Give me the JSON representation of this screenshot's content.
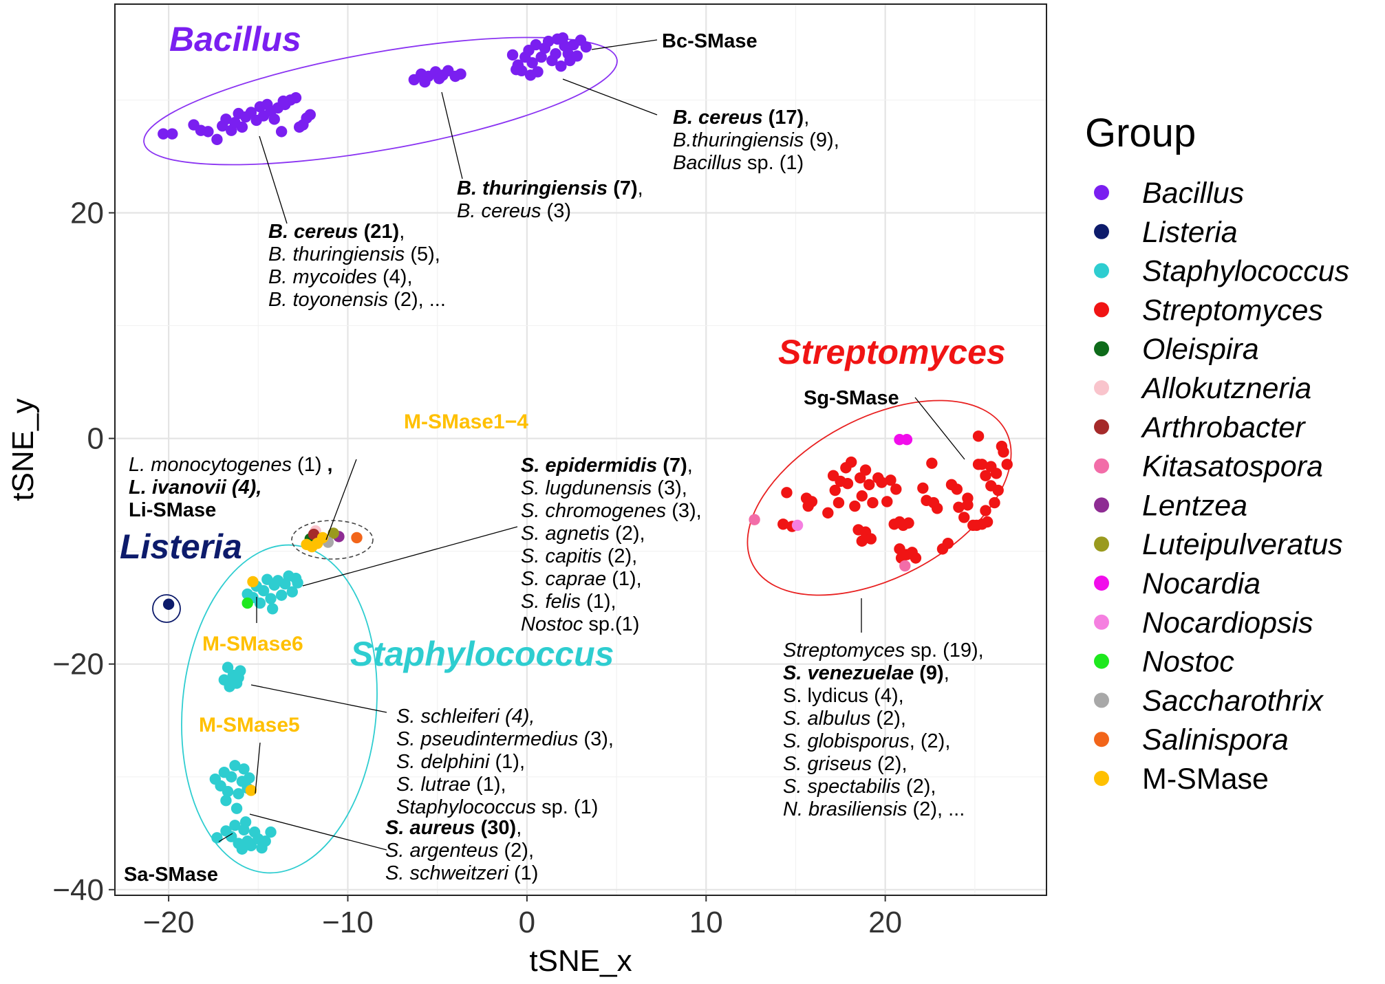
{
  "chart_data": {
    "type": "scatter",
    "xlabel": "tSNE_x",
    "ylabel": "tSNE_y",
    "xlim": [
      -23,
      29
    ],
    "ylim": [
      -40.5,
      38.5
    ],
    "xticks": [
      -20,
      -10,
      0,
      10,
      20
    ],
    "yticks": [
      -40,
      -20,
      0,
      20
    ],
    "xtick_labels": [
      "−20",
      "−10",
      "0",
      "10",
      "20"
    ],
    "ytick_labels": [
      "−40",
      "−20",
      "0",
      "20"
    ],
    "grid": true,
    "legend_title": "Group",
    "legend_position": "right",
    "groups": [
      {
        "name": "Bacillus",
        "color": "#7A1FF0",
        "italic": true
      },
      {
        "name": "Listeria",
        "color": "#0D1B6B",
        "italic": true
      },
      {
        "name": "Staphylococcus",
        "color": "#2ECDD0",
        "italic": true
      },
      {
        "name": "Streptomyces",
        "color": "#F01414",
        "italic": true
      },
      {
        "name": "Oleispira",
        "color": "#0E6B1A",
        "italic": true
      },
      {
        "name": "Allokutzneria",
        "color": "#F9C4CC",
        "italic": true
      },
      {
        "name": "Arthrobacter",
        "color": "#A52A2A",
        "italic": true
      },
      {
        "name": "Kitasatospora",
        "color": "#F26DA8",
        "italic": true
      },
      {
        "name": "Lentzea",
        "color": "#8E2C93",
        "italic": true
      },
      {
        "name": "Luteipulveratus",
        "color": "#9A9A1E",
        "italic": true
      },
      {
        "name": "Nocardia",
        "color": "#F10DEB",
        "italic": true
      },
      {
        "name": "Nocardiopsis",
        "color": "#F57FE0",
        "italic": true
      },
      {
        "name": "Nostoc",
        "color": "#1EE81E",
        "italic": true
      },
      {
        "name": "Saccharothrix",
        "color": "#A8A8A8",
        "italic": true
      },
      {
        "name": "Salinispora",
        "color": "#F2651A",
        "italic": true
      },
      {
        "name": "M-SMase",
        "color": "#FFC000",
        "italic": false
      }
    ],
    "series": [
      {
        "group": "Bacillus",
        "points": [
          [
            -20.3,
            27
          ],
          [
            -19.8,
            27
          ],
          [
            -18.6,
            27.8
          ],
          [
            -18.2,
            27.3
          ],
          [
            -17.8,
            27.2
          ],
          [
            -17.3,
            26.5
          ],
          [
            -17,
            27.7
          ],
          [
            -16.8,
            28.3
          ],
          [
            -16.5,
            27.3
          ],
          [
            -16.3,
            28
          ],
          [
            -16.1,
            28.8
          ],
          [
            -15.9,
            27.6
          ],
          [
            -15.7,
            28.5
          ],
          [
            -15.4,
            28.9
          ],
          [
            -15.1,
            28.2
          ],
          [
            -14.9,
            29.4
          ],
          [
            -14.7,
            28.6
          ],
          [
            -14.5,
            29.6
          ],
          [
            -14.3,
            29
          ],
          [
            -14.1,
            28.3
          ],
          [
            -13.9,
            29.3
          ],
          [
            -13.7,
            27.2
          ],
          [
            -13.5,
            29.6
          ],
          [
            -13.2,
            30
          ],
          [
            -12.9,
            30.2
          ],
          [
            -13.6,
            29.9
          ],
          [
            -12.7,
            27.6
          ],
          [
            -12.5,
            27.8
          ],
          [
            -12.3,
            28.4
          ],
          [
            -12.1,
            28.7
          ],
          [
            -6.3,
            31.8
          ],
          [
            -5.9,
            32.3
          ],
          [
            -5.5,
            32.1
          ],
          [
            -5.1,
            32.5
          ],
          [
            -4.7,
            32.2
          ],
          [
            -4.4,
            32.6
          ],
          [
            -4,
            32.1
          ],
          [
            -3.7,
            32.3
          ],
          [
            -5.7,
            31.6
          ],
          [
            -4.9,
            31.9
          ],
          [
            -0.8,
            34
          ],
          [
            -0.5,
            33.1
          ],
          [
            -0.3,
            32.6
          ],
          [
            -0.1,
            33.8
          ],
          [
            0.1,
            34.4
          ],
          [
            0.3,
            33.3
          ],
          [
            0.5,
            34.9
          ],
          [
            0.6,
            32.5
          ],
          [
            0.8,
            33.8
          ],
          [
            1,
            34.6
          ],
          [
            1.2,
            35.2
          ],
          [
            1.4,
            33.5
          ],
          [
            1.6,
            34.1
          ],
          [
            1.7,
            35.4
          ],
          [
            1.9,
            33
          ],
          [
            2.1,
            34.8
          ],
          [
            2.3,
            34.1
          ],
          [
            2.4,
            33.5
          ],
          [
            2.6,
            34.9
          ],
          [
            2.8,
            33.9
          ],
          [
            3,
            35.3
          ],
          [
            3.3,
            34.7
          ],
          [
            -0.6,
            32.7
          ],
          [
            0.2,
            32.2
          ],
          [
            2,
            35.5
          ]
        ]
      },
      {
        "group": "Listeria",
        "points": [
          [
            -20,
            -14.7
          ]
        ]
      },
      {
        "group": "Staphylococcus",
        "points": [
          [
            -15.6,
            -13.8
          ],
          [
            -15.3,
            -14.1
          ],
          [
            -15.1,
            -13.1
          ],
          [
            -14.9,
            -14.6
          ],
          [
            -14.7,
            -13.5
          ],
          [
            -14.5,
            -12.5
          ],
          [
            -14.3,
            -14.2
          ],
          [
            -14.1,
            -13
          ],
          [
            -13.9,
            -12.6
          ],
          [
            -13.7,
            -13.9
          ],
          [
            -13.5,
            -12.9
          ],
          [
            -13.3,
            -12.2
          ],
          [
            -13.1,
            -13.6
          ],
          [
            -12.9,
            -12.4
          ],
          [
            -12.8,
            -12.8
          ],
          [
            -14.2,
            -15.1
          ],
          [
            -16.9,
            -21.4
          ],
          [
            -16.7,
            -20.3
          ],
          [
            -16.6,
            -22
          ],
          [
            -16.4,
            -21
          ],
          [
            -16.2,
            -21.7
          ],
          [
            -16.1,
            -21.2
          ],
          [
            -16,
            -20.6
          ],
          [
            -16.5,
            -21.8
          ],
          [
            -17.4,
            -30.2
          ],
          [
            -17.1,
            -30.8
          ],
          [
            -16.9,
            -29.6
          ],
          [
            -16.7,
            -31.3
          ],
          [
            -16.5,
            -30
          ],
          [
            -16.3,
            -29
          ],
          [
            -16.1,
            -31.5
          ],
          [
            -15.9,
            -30.4
          ],
          [
            -15.8,
            -29.3
          ],
          [
            -15.6,
            -31
          ],
          [
            -15.5,
            -30.1
          ],
          [
            -16.8,
            -32.1
          ],
          [
            -16.2,
            -32.8
          ],
          [
            -16.8,
            -34.8
          ],
          [
            -16.5,
            -35.3
          ],
          [
            -16.3,
            -34.3
          ],
          [
            -16.1,
            -35.9
          ],
          [
            -15.9,
            -36.4
          ],
          [
            -15.8,
            -34.7
          ],
          [
            -15.6,
            -35.7
          ],
          [
            -15.4,
            -36.1
          ],
          [
            -15.2,
            -34.9
          ],
          [
            -15,
            -35.5
          ],
          [
            -14.8,
            -36.3
          ],
          [
            -14.6,
            -35.7
          ],
          [
            -14.3,
            -34.9
          ],
          [
            -15.7,
            -34
          ],
          [
            -17.3,
            -35.4
          ]
        ]
      },
      {
        "group": "Streptomyces",
        "points": [
          [
            14.5,
            -4.8
          ],
          [
            14.8,
            -7.8
          ],
          [
            14.3,
            -7.6
          ],
          [
            15.6,
            -5.3
          ],
          [
            15.9,
            -5.6
          ],
          [
            15.7,
            -6
          ],
          [
            16.8,
            -6.6
          ],
          [
            17.2,
            -4.6
          ],
          [
            17.1,
            -3.3
          ],
          [
            17.5,
            -3.8
          ],
          [
            17.4,
            -5.7
          ],
          [
            17.8,
            -2.6
          ],
          [
            17.9,
            -4
          ],
          [
            18.3,
            -6
          ],
          [
            18.1,
            -2.1
          ],
          [
            18.6,
            -3.5
          ],
          [
            18.9,
            -2.8
          ],
          [
            19.1,
            -4.1
          ],
          [
            19.3,
            -5.7
          ],
          [
            18.7,
            -5.1
          ],
          [
            18.5,
            -8.1
          ],
          [
            18.9,
            -8.3
          ],
          [
            19.2,
            -8.9
          ],
          [
            18.7,
            -9.1
          ],
          [
            19.6,
            -3.5
          ],
          [
            19.8,
            -3.9
          ],
          [
            20.1,
            -5.6
          ],
          [
            20.3,
            -3.7
          ],
          [
            20.6,
            -4.5
          ],
          [
            20.8,
            -7.4
          ],
          [
            21,
            -7.7
          ],
          [
            21.3,
            -7.5
          ],
          [
            20.5,
            -7.6
          ],
          [
            20.8,
            -9.8
          ],
          [
            21.2,
            -10.3
          ],
          [
            21.5,
            -10.1
          ],
          [
            21.7,
            -10.6
          ],
          [
            20.9,
            -10.6
          ],
          [
            22.1,
            -4.4
          ],
          [
            22.3,
            -5.5
          ],
          [
            22.6,
            -2.2
          ],
          [
            22.9,
            -6.2
          ],
          [
            23.2,
            -9.8
          ],
          [
            23.5,
            -9.3
          ],
          [
            23.7,
            -4.1
          ],
          [
            24,
            -4.5
          ],
          [
            24.1,
            -6.1
          ],
          [
            24.4,
            -7
          ],
          [
            24.6,
            -5.3
          ],
          [
            24.9,
            -7.7
          ],
          [
            25.2,
            0.2
          ],
          [
            25.4,
            -2.3
          ],
          [
            25.6,
            -3.3
          ],
          [
            25.9,
            -2.5
          ],
          [
            26.1,
            -5.7
          ],
          [
            26.3,
            -4.6
          ],
          [
            26.6,
            -1.2
          ],
          [
            26.8,
            -2.3
          ],
          [
            26.5,
            -0.7
          ],
          [
            25.7,
            -7.4
          ],
          [
            25.4,
            -7.6
          ],
          [
            25.1,
            -7.7
          ],
          [
            24.6,
            -5.9
          ],
          [
            25.9,
            -4.2
          ],
          [
            26.2,
            -3.1
          ],
          [
            25.6,
            -6.4
          ],
          [
            25.2,
            -2.3
          ],
          [
            22.7,
            -5.7
          ]
        ]
      },
      {
        "group": "Oleispira",
        "points": [
          [
            -12.1,
            -8.9
          ]
        ]
      },
      {
        "group": "Allokutzneria",
        "points": [
          [
            -11.8,
            -8.2
          ]
        ]
      },
      {
        "group": "Arthrobacter",
        "points": [
          [
            -11.9,
            -8.5
          ]
        ]
      },
      {
        "group": "Kitasatospora",
        "points": [
          [
            12.7,
            -7.2
          ],
          [
            21.1,
            -11.3
          ]
        ]
      },
      {
        "group": "Lentzea",
        "points": [
          [
            -10.5,
            -8.7
          ]
        ]
      },
      {
        "group": "Luteipulveratus",
        "points": [
          [
            -10.8,
            -8.4
          ]
        ]
      },
      {
        "group": "Nocardia",
        "points": [
          [
            20.8,
            -0.1
          ],
          [
            21.2,
            -0.1
          ]
        ]
      },
      {
        "group": "Nocardiopsis",
        "points": [
          [
            15.1,
            -7.7
          ]
        ]
      },
      {
        "group": "Nostoc",
        "points": [
          [
            -15.6,
            -14.6
          ]
        ]
      },
      {
        "group": "Saccharothrix",
        "points": [
          [
            -11.1,
            -9.2
          ]
        ]
      },
      {
        "group": "Salinispora",
        "points": [
          [
            -9.5,
            -8.8
          ]
        ]
      },
      {
        "group": "M-SMase",
        "points": [
          [
            -12.3,
            -9.4
          ],
          [
            -12,
            -9.6
          ],
          [
            -11.7,
            -9.3
          ],
          [
            -11.4,
            -8.8
          ],
          [
            -15.3,
            -12.7
          ],
          [
            -15.4,
            -31.2
          ]
        ]
      }
    ],
    "annotations": {
      "cluster_titles": [
        "Bacillus",
        "Listeria",
        "Staphylococcus",
        "Streptomyces"
      ],
      "enzymes": [
        "Bc-SMase",
        "Li-SMase",
        "Sg-SMase",
        "Sa-SMase",
        "M-SMase1−4",
        "M-SMase6",
        "M-SMase5"
      ],
      "bc_group3": {
        "a": "B. cereus",
        "a_count": "(17)",
        "a_sep": ",",
        "b": "B.thuringiensis",
        "b_count": " (9),",
        "c": "Bacillus",
        "c_rest": " sp. (1)"
      },
      "bc_group2": {
        "a": "B. thuringiensis",
        "a_count": " (7)",
        "a_sep": ",",
        "b": "B. cereus",
        "b_count": " (3)"
      },
      "bc_group1": {
        "a": "B. cereus",
        "a_count": " (21)",
        "a_sep": ",",
        "b": "B. thuringiensis",
        "b_count": " (5),",
        "c": "B. mycoides",
        "c_count": " (4),",
        "d": "B. toyonensis",
        "d_count": " (2), ..."
      },
      "listeria": {
        "a": "L. monocytogenes",
        "a_count": " (1) ",
        "a_sep": ",",
        "b": "L. ivanovii (4),"
      },
      "staph_top": {
        "a": "S. epidermidis",
        "a_count": " (7)",
        "a_sep": ",",
        "l2": "S. lugdunensis",
        "l2c": " (3),",
        "l3": "S. chromogenes",
        "l3c": " (3),",
        "l4": "S. agnetis",
        "l4c": " (2),",
        "l5": "S. capitis",
        "l5c": " (2),",
        "l6": "S. caprae",
        "l6c": " (1),",
        "l7": "S. felis",
        "l7c": " (1),",
        "l8": "Nostoc",
        "l8c": " sp.(1)"
      },
      "staph_mid": {
        "l1": "S. schleiferi (4),",
        "l2": "S. pseudintermedius",
        "l2c": " (3),",
        "l3": "S. delphini",
        "l3c": " (1),",
        "l4": "S. lutrae",
        "l4c": " (1),",
        "l5": "Staphylococcus",
        "l5c": " sp. (1)"
      },
      "staph_bot": {
        "a": "S. aureus",
        "a_count": " (30)",
        "a_sep": ",",
        "l2": "S. argenteus",
        "l2c": " (2),",
        "l3": "S. schweitzeri",
        "l3c": " (1)"
      },
      "strep": {
        "l1": "Streptomyces",
        "l1c": " sp. (19),",
        "l2": "S. venezuelae",
        "l2c": " (9)",
        "l2s": ",",
        "l3": "S. lydicus (4),",
        "l4": "S. albulus",
        "l4c": " (2),",
        "l5": "S. globisporus",
        "l5c": ", (2),",
        "l6": "S. griseus",
        "l6c": " (2),",
        "l7": "S. spectabilis",
        "l7c": " (2),",
        "l8": "N. brasiliensis",
        "l8c": " (2), ..."
      }
    }
  }
}
